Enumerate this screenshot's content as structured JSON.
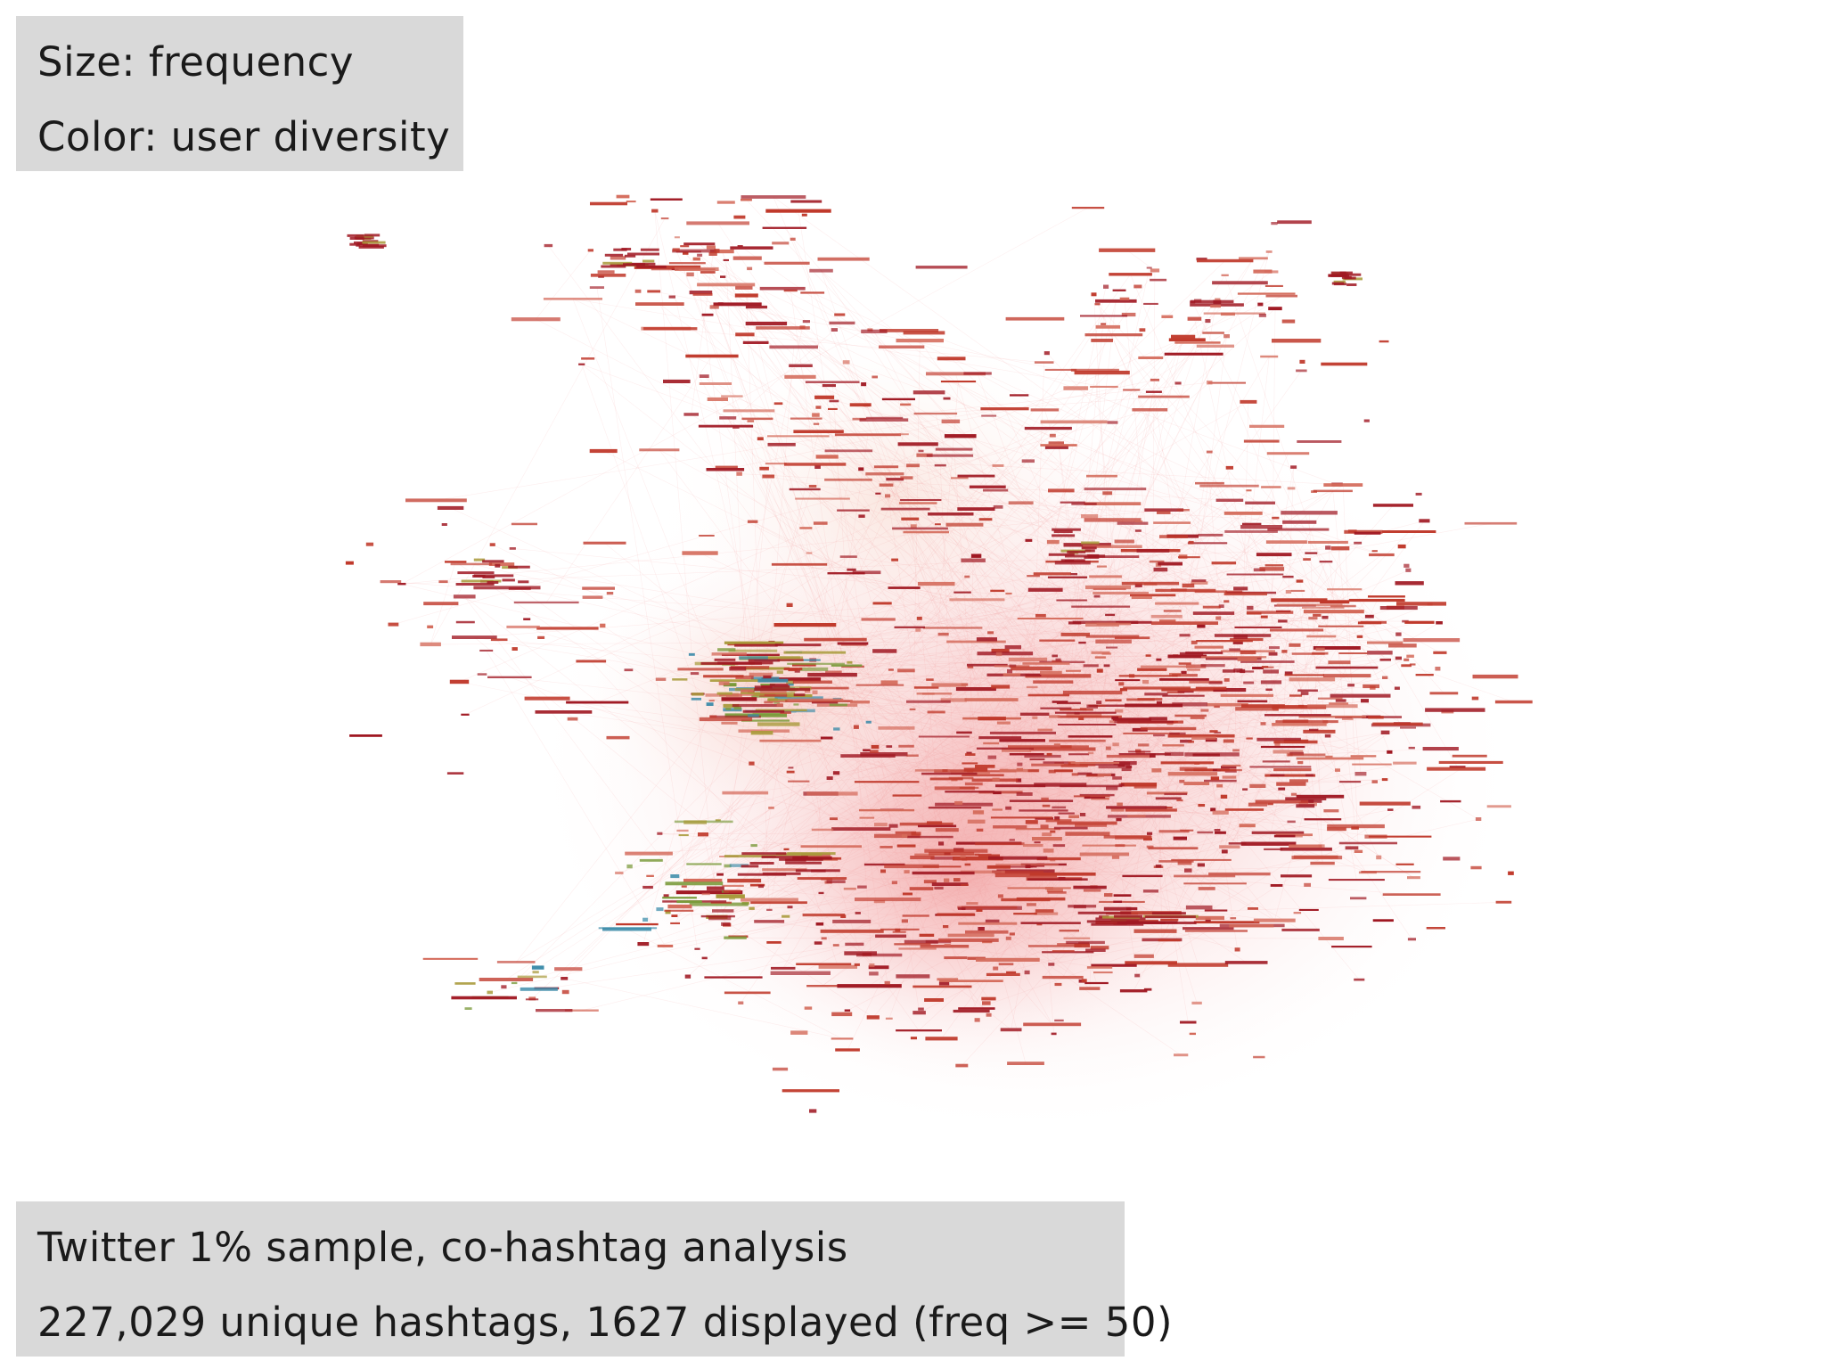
{
  "legend": {
    "size_line": "Size: frequency",
    "color_line": "Color: user diversity"
  },
  "caption": {
    "line1": "Twitter 1% sample, co-hashtag analysis",
    "line2": "227,029 unique hashtags, 1627 displayed (freq >= 50)"
  },
  "graph": {
    "node_colors": {
      "high": "#a01822",
      "mid": "#c0392b",
      "low": "#d46a5a",
      "green": "#7a9a3a",
      "olive": "#a89a3a",
      "teal": "#3a8aa8",
      "edge_haze": "#f2a0a0"
    }
  }
}
